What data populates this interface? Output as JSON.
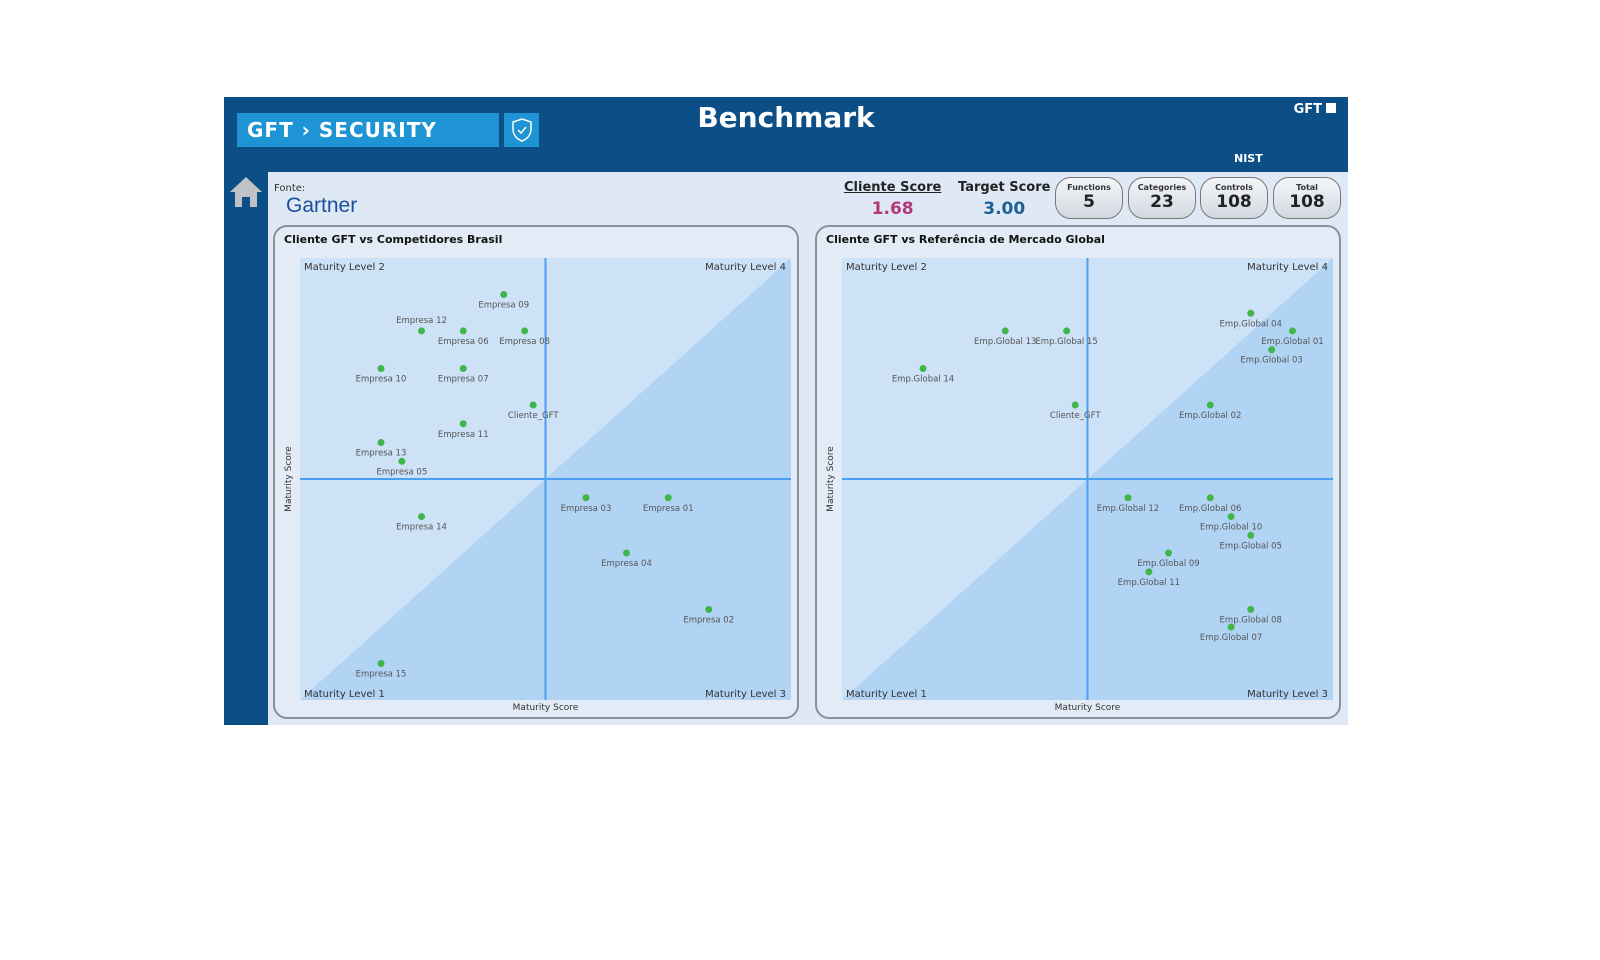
{
  "header": {
    "breadcrumb": "GFT › SECURITY",
    "title": "Benchmark",
    "brand": "GFT",
    "framework": "NIST"
  },
  "source": {
    "label": "Fonte:",
    "name": "Gartner"
  },
  "scores": {
    "cliente_label": "Cliente Score",
    "cliente_value": "1.68",
    "target_label": "Target Score",
    "target_value": "3.00"
  },
  "counters": [
    {
      "label": "Functions",
      "value": "5"
    },
    {
      "label": "Categories",
      "value": "23"
    },
    {
      "label": "Controls",
      "value": "108"
    },
    {
      "label": "Total",
      "value": "108"
    }
  ],
  "colors": {
    "header": "#0c4f86",
    "accent": "#1f94d4",
    "point": "#3fb54a",
    "cliente": "#b5367a",
    "target": "#1e5f96"
  },
  "chart_data": [
    {
      "type": "scatter",
      "title": "Cliente GFT vs Competidores Brasil",
      "xlabel": "Maturity Score",
      "ylabel": "Maturity Score",
      "xlim": [
        0,
        4
      ],
      "ylim": [
        0,
        4
      ],
      "quadrants": {
        "top_left": "Maturity Level 2",
        "top_right": "Maturity Level 4",
        "bottom_left": "Maturity Level 1",
        "bottom_right": "Maturity Level 3"
      },
      "points": [
        {
          "label": "Empresa 09",
          "x": 1.66,
          "y": 3.67
        },
        {
          "label": "Empresa 12",
          "x": 0.99,
          "y": 3.34,
          "above": true
        },
        {
          "label": "Empresa 06",
          "x": 1.33,
          "y": 3.34
        },
        {
          "label": "Empresa 08",
          "x": 1.83,
          "y": 3.34
        },
        {
          "label": "Empresa 10",
          "x": 0.66,
          "y": 3.0
        },
        {
          "label": "Empresa 07",
          "x": 1.33,
          "y": 3.0
        },
        {
          "label": "Cliente_GFT",
          "x": 1.9,
          "y": 2.67
        },
        {
          "label": "Empresa 11",
          "x": 1.33,
          "y": 2.5
        },
        {
          "label": "Empresa 13",
          "x": 0.66,
          "y": 2.33
        },
        {
          "label": "Empresa 05",
          "x": 0.83,
          "y": 2.16
        },
        {
          "label": "Empresa 14",
          "x": 0.99,
          "y": 1.66
        },
        {
          "label": "Empresa 03",
          "x": 2.33,
          "y": 1.83
        },
        {
          "label": "Empresa 01",
          "x": 3.0,
          "y": 1.83
        },
        {
          "label": "Empresa 04",
          "x": 2.66,
          "y": 1.33
        },
        {
          "label": "Empresa 02",
          "x": 3.33,
          "y": 0.82
        },
        {
          "label": "Empresa 15",
          "x": 0.66,
          "y": 0.33
        }
      ]
    },
    {
      "type": "scatter",
      "title": "Cliente GFT vs Referência de Mercado Global",
      "xlabel": "Maturity Score",
      "ylabel": "Maturity Score",
      "xlim": [
        0,
        4
      ],
      "ylim": [
        0,
        4
      ],
      "quadrants": {
        "top_left": "Maturity Level 2",
        "top_right": "Maturity Level 4",
        "bottom_left": "Maturity Level 1",
        "bottom_right": "Maturity Level 3"
      },
      "points": [
        {
          "label": "Emp.Global 13",
          "x": 1.33,
          "y": 3.34
        },
        {
          "label": "Emp.Global 15",
          "x": 1.83,
          "y": 3.34
        },
        {
          "label": "Emp.Global 14",
          "x": 0.66,
          "y": 3.0
        },
        {
          "label": "Cliente_GFT",
          "x": 1.9,
          "y": 2.67
        },
        {
          "label": "Emp.Global 04",
          "x": 3.33,
          "y": 3.5
        },
        {
          "label": "Emp.Global 01",
          "x": 3.67,
          "y": 3.34
        },
        {
          "label": "Emp.Global 03",
          "x": 3.5,
          "y": 3.17
        },
        {
          "label": "Emp.Global 02",
          "x": 3.0,
          "y": 2.67
        },
        {
          "label": "Emp.Global 12",
          "x": 2.33,
          "y": 1.83
        },
        {
          "label": "Emp.Global 06",
          "x": 3.0,
          "y": 1.83
        },
        {
          "label": "Emp.Global 10",
          "x": 3.17,
          "y": 1.66
        },
        {
          "label": "Emp.Global 05",
          "x": 3.33,
          "y": 1.49
        },
        {
          "label": "Emp.Global 09",
          "x": 2.66,
          "y": 1.33
        },
        {
          "label": "Emp.Global 11",
          "x": 2.5,
          "y": 1.16
        },
        {
          "label": "Emp.Global 08",
          "x": 3.33,
          "y": 0.82
        },
        {
          "label": "Emp.Global 07",
          "x": 3.17,
          "y": 0.66
        }
      ]
    }
  ]
}
